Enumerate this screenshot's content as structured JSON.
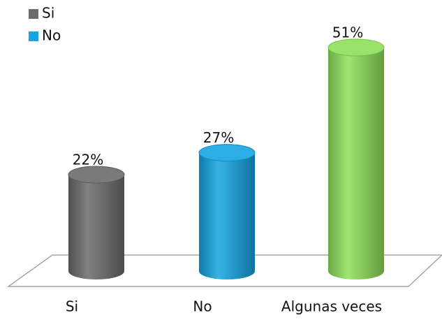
{
  "chart_data": {
    "type": "cylinder",
    "categories": [
      "Si",
      "No",
      "Algunas veces"
    ],
    "values": [
      22,
      27,
      51
    ],
    "value_labels": [
      "22%",
      "27%",
      "51%"
    ],
    "colors": [
      "#6b6b6b",
      "#14a4e0",
      "#8fe05a"
    ],
    "legend": [
      {
        "name": "Si",
        "color": "#6b6b6b"
      },
      {
        "name": "No",
        "color": "#14a4e0"
      }
    ]
  }
}
